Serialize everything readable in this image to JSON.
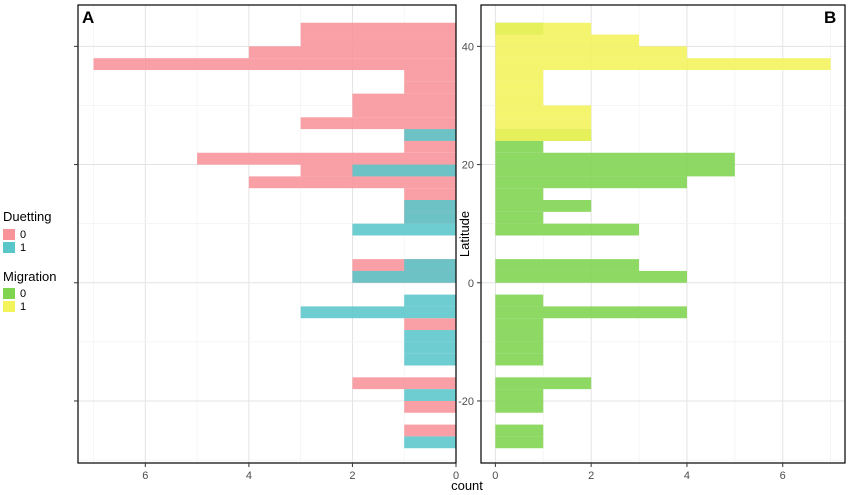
{
  "chart_data": [
    {
      "panel_label": "A",
      "type": "bar",
      "orientation": "horizontal",
      "x_reversed": true,
      "xlabel": "",
      "ylabel": "",
      "xlim": [
        7.3,
        0
      ],
      "ylim": [
        -30.5,
        47
      ],
      "x_ticks": [
        6,
        4,
        2,
        0
      ],
      "y_ticks": [
        40,
        20,
        0,
        -20
      ],
      "y_tick_labels_shown": false,
      "grid": true,
      "bin_width": 2,
      "series": [
        {
          "name": "0",
          "color": "#f8939a",
          "bins": [
            {
              "y": 43,
              "value": 3
            },
            {
              "y": 41,
              "value": 3
            },
            {
              "y": 39,
              "value": 4
            },
            {
              "y": 37,
              "value": 7
            },
            {
              "y": 35,
              "value": 1
            },
            {
              "y": 33,
              "value": 1
            },
            {
              "y": 31,
              "value": 2
            },
            {
              "y": 29,
              "value": 2
            },
            {
              "y": 27,
              "value": 3
            },
            {
              "y": 25,
              "value": 1
            },
            {
              "y": 23,
              "value": 1
            },
            {
              "y": 21,
              "value": 5
            },
            {
              "y": 19,
              "value": 3
            },
            {
              "y": 17,
              "value": 4
            },
            {
              "y": 15,
              "value": 1
            },
            {
              "y": 13,
              "value": 1
            },
            {
              "y": 11,
              "value": 1
            },
            {
              "y": 3,
              "value": 2
            },
            {
              "y": 1,
              "value": 2
            },
            {
              "y": -7,
              "value": 1
            },
            {
              "y": -17,
              "value": 2
            },
            {
              "y": -21,
              "value": 1
            },
            {
              "y": -25,
              "value": 1
            }
          ]
        },
        {
          "name": "1",
          "color": "#59c6c9",
          "bins": [
            {
              "y": 25,
              "value": 1
            },
            {
              "y": 19,
              "value": 2
            },
            {
              "y": 13,
              "value": 1
            },
            {
              "y": 11,
              "value": 1
            },
            {
              "y": 9,
              "value": 2
            },
            {
              "y": 3,
              "value": 1
            },
            {
              "y": 1,
              "value": 2
            },
            {
              "y": -3,
              "value": 1
            },
            {
              "y": -5,
              "value": 3
            },
            {
              "y": -9,
              "value": 1
            },
            {
              "y": -11,
              "value": 1
            },
            {
              "y": -13,
              "value": 1
            },
            {
              "y": -19,
              "value": 1
            },
            {
              "y": -27,
              "value": 1
            }
          ]
        }
      ]
    },
    {
      "panel_label": "B",
      "type": "bar",
      "orientation": "horizontal",
      "xlabel": "",
      "ylabel": "Latitude",
      "xlim": [
        -0.3,
        7.3
      ],
      "ylim": [
        -30.5,
        47
      ],
      "x_ticks": [
        0,
        2,
        4,
        6
      ],
      "y_ticks": [
        40,
        20,
        0,
        -20
      ],
      "grid": true,
      "bin_width": 2,
      "series": [
        {
          "name": "0",
          "color": "#7ed34f",
          "bins": [
            {
              "y": 43,
              "value": 1
            },
            {
              "y": 25,
              "value": 2
            },
            {
              "y": 23,
              "value": 1
            },
            {
              "y": 21,
              "value": 5
            },
            {
              "y": 19,
              "value": 5
            },
            {
              "y": 17,
              "value": 4
            },
            {
              "y": 15,
              "value": 1
            },
            {
              "y": 13,
              "value": 2
            },
            {
              "y": 11,
              "value": 1
            },
            {
              "y": 9,
              "value": 3
            },
            {
              "y": 3,
              "value": 3
            },
            {
              "y": 1,
              "value": 4
            },
            {
              "y": -3,
              "value": 1
            },
            {
              "y": -5,
              "value": 4
            },
            {
              "y": -7,
              "value": 1
            },
            {
              "y": -9,
              "value": 1
            },
            {
              "y": -11,
              "value": 1
            },
            {
              "y": -13,
              "value": 1
            },
            {
              "y": -17,
              "value": 2
            },
            {
              "y": -19,
              "value": 1
            },
            {
              "y": -21,
              "value": 1
            },
            {
              "y": -25,
              "value": 1
            },
            {
              "y": -27,
              "value": 1
            }
          ]
        },
        {
          "name": "1",
          "color": "#f3f35a",
          "bins": [
            {
              "y": 43,
              "value": 2
            },
            {
              "y": 41,
              "value": 3
            },
            {
              "y": 39,
              "value": 4
            },
            {
              "y": 37,
              "value": 7
            },
            {
              "y": 35,
              "value": 1
            },
            {
              "y": 33,
              "value": 1
            },
            {
              "y": 31,
              "value": 1
            },
            {
              "y": 29,
              "value": 2
            },
            {
              "y": 27,
              "value": 2
            },
            {
              "y": 25,
              "value": 2
            }
          ]
        }
      ]
    }
  ],
  "shared_xlabel": "count",
  "legends": [
    {
      "title": "Duetting",
      "items": [
        {
          "label": "0",
          "color": "#f8939a"
        },
        {
          "label": "1",
          "color": "#59c6c9"
        }
      ]
    },
    {
      "title": "Migration",
      "items": [
        {
          "label": "0",
          "color": "#7ed34f"
        },
        {
          "label": "1",
          "color": "#f3f35a"
        }
      ]
    }
  ]
}
